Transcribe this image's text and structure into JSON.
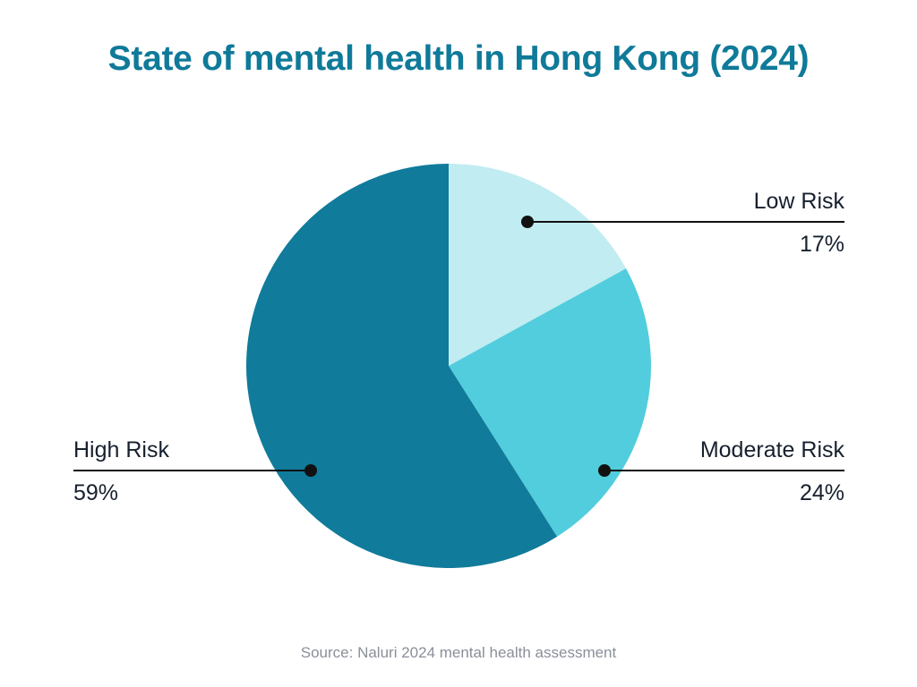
{
  "chart_data": {
    "type": "pie",
    "title": "State of mental health in Hong Kong (2024)",
    "categories": [
      "Low Risk",
      "Moderate Risk",
      "High Risk"
    ],
    "values": [
      17,
      24,
      59
    ],
    "value_labels": [
      "17%",
      "24%",
      "59%"
    ],
    "colors": [
      "#c1ecf1",
      "#52cddd",
      "#107b9a"
    ],
    "start_angle": "12 o'clock",
    "direction": "clockwise",
    "source": "Source: Naluri 2024 mental health assessment"
  },
  "colors": {
    "title": "#0f7a99",
    "text": "#17202e",
    "source": "#8a8f99",
    "leader": "#111111"
  }
}
